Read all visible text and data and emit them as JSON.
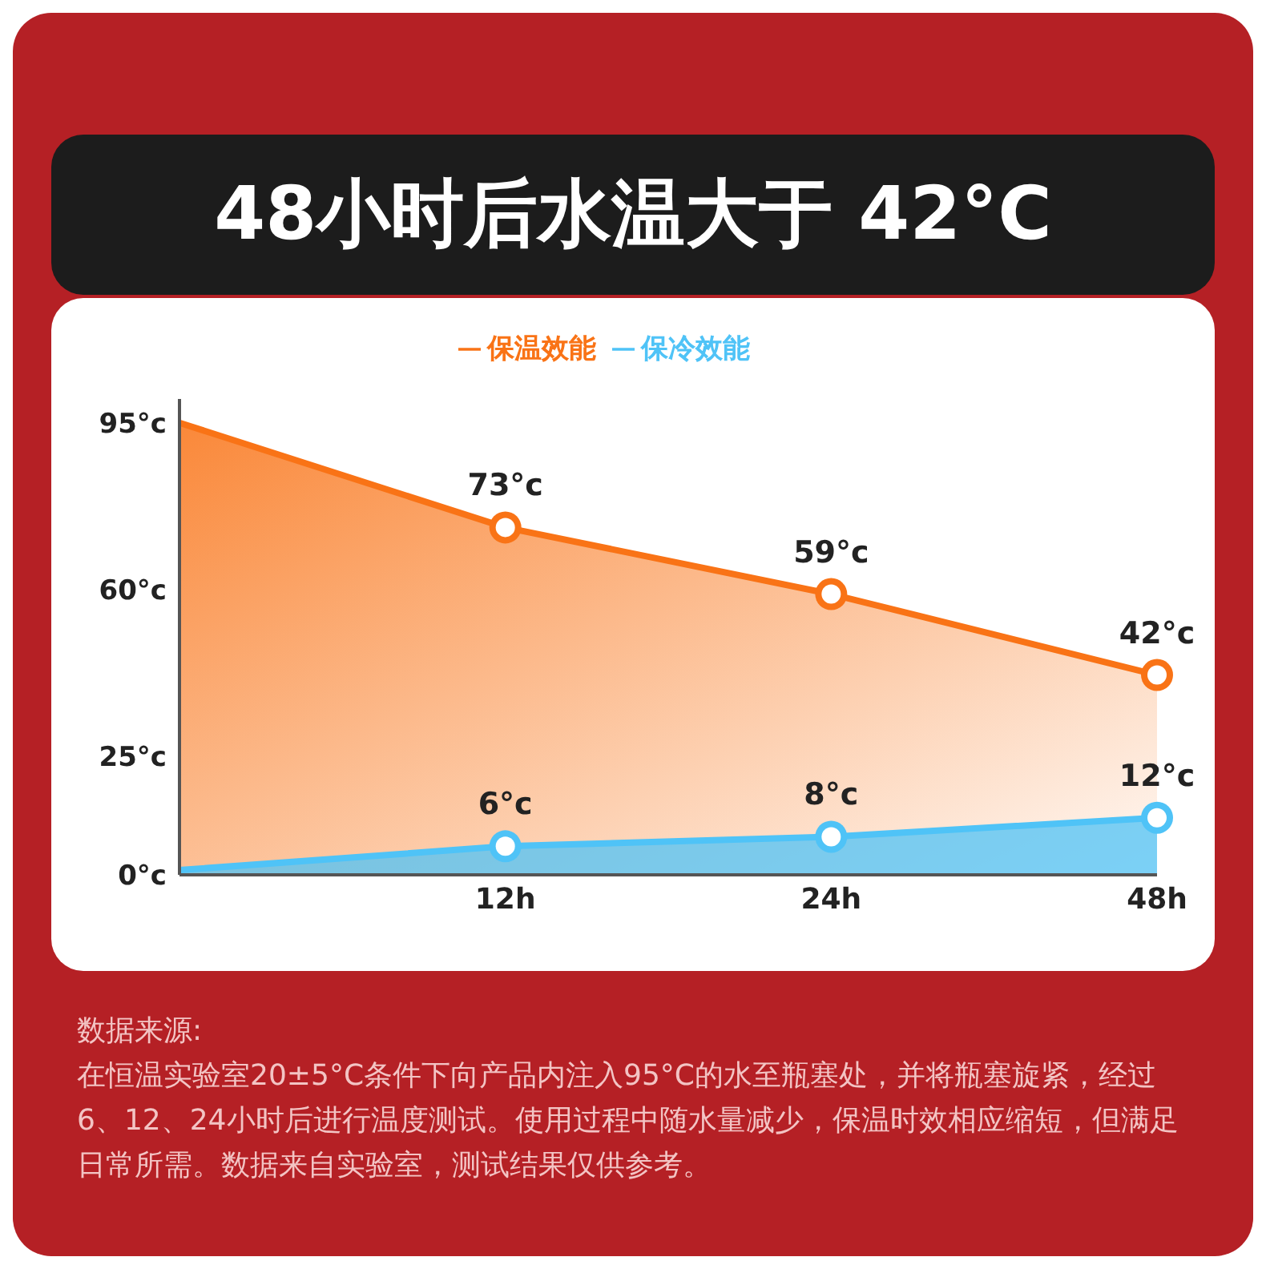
{
  "chart_data": {
    "type": "area",
    "title": "48小时后水温大于 42°C",
    "categories": [
      null,
      "12h",
      "24h",
      "48h"
    ],
    "series": [
      {
        "name": "保温效能",
        "color": "#f97316",
        "values": [
          95,
          73,
          59,
          42
        ],
        "value_labels": [
          null,
          "73°c",
          "59°c",
          "42°c"
        ]
      },
      {
        "name": "保冷效能",
        "color": "#4fc3f7",
        "values": [
          1,
          6,
          8,
          12
        ],
        "value_labels": [
          null,
          "6°c",
          "8°c",
          "12°c"
        ]
      }
    ],
    "ylim": [
      0,
      100
    ],
    "yticks": [
      {
        "value": 0,
        "label": "0°c"
      },
      {
        "value": 25,
        "label": "25°c"
      },
      {
        "value": 60,
        "label": "60°c"
      },
      {
        "value": 95,
        "label": "95°c"
      }
    ],
    "legend": "top",
    "marker": "circle",
    "grid": false,
    "annotations": [
      "数据来源:",
      "在恒温实验室20±5°C条件下向产品内注入95°C的水至瓶塞处，并将瓶塞旋紧，经过6、12、24小时后进行温度测试。使用过程中随水量减少，保温时效相应缩短，但满足日常所需。数据来自实验室，测试结果仅供参考。"
    ]
  }
}
